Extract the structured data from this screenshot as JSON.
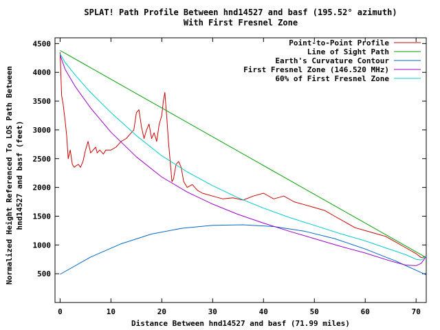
{
  "chart_data": {
    "type": "line",
    "title": "SPLAT! Path Profile Between hnd14527 and basf (195.52° azimuth)",
    "subtitle": "With First Fresnel Zone",
    "xlabel": "Distance Between hnd14527 and basf (71.99 miles)",
    "ylabel_line1": "Normalized Height Referenced To LOS Path Between",
    "ylabel_line2": "hnd14527 and basf (feet)",
    "xlim": [
      -1,
      72
    ],
    "ylim": [
      0,
      4600
    ],
    "x_ticks": [
      0,
      10,
      20,
      30,
      40,
      50,
      60,
      70
    ],
    "y_ticks": [
      500,
      1000,
      1500,
      2000,
      2500,
      3000,
      3500,
      4000,
      4500
    ],
    "grid": false,
    "legend_position": "top-right",
    "series": [
      {
        "name": "Point-to-Point Profile",
        "color": "#cc0000",
        "x": [
          0,
          0.3,
          0.6,
          1.0,
          1.3,
          1.6,
          2.0,
          2.4,
          2.8,
          3.2,
          3.6,
          4.0,
          4.5,
          5.0,
          5.5,
          6.0,
          6.5,
          7.0,
          7.3,
          7.8,
          8.5,
          9.0,
          10,
          11,
          12,
          13,
          14,
          14.5,
          15.0,
          15.5,
          16.0,
          16.5,
          17.0,
          17.5,
          18.0,
          18.5,
          19.0,
          19.5,
          20.0,
          20.3,
          20.6,
          21.0,
          21.3,
          21.6,
          22.0,
          22.3,
          22.8,
          23.3,
          23.8,
          24.3,
          25,
          26,
          27,
          28,
          30,
          32,
          34,
          36,
          38,
          40,
          42,
          44,
          46,
          48,
          50,
          52,
          54,
          56,
          58,
          60,
          62,
          64,
          66,
          68,
          70,
          71,
          72
        ],
        "values": [
          4350,
          3600,
          3450,
          3150,
          2900,
          2500,
          2650,
          2400,
          2350,
          2380,
          2400,
          2350,
          2450,
          2650,
          2800,
          2600,
          2650,
          2700,
          2600,
          2650,
          2580,
          2650,
          2650,
          2700,
          2800,
          2850,
          2950,
          3000,
          3300,
          3350,
          3050,
          2850,
          3000,
          3100,
          2850,
          2950,
          2800,
          3100,
          3250,
          3500,
          3650,
          3200,
          2800,
          2500,
          2100,
          2150,
          2400,
          2450,
          2350,
          2100,
          2000,
          2050,
          1950,
          1900,
          1850,
          1800,
          1820,
          1780,
          1850,
          1900,
          1800,
          1850,
          1750,
          1700,
          1650,
          1600,
          1500,
          1400,
          1300,
          1250,
          1200,
          1150,
          1050,
          950,
          850,
          780,
          800
        ]
      },
      {
        "name": "Line of Sight Path",
        "color": "#00a000",
        "x": [
          0,
          72
        ],
        "values": [
          4380,
          780
        ]
      },
      {
        "name": "Earth's Curvature Contour",
        "color": "#0066cc",
        "x": [
          0,
          6,
          12,
          18,
          24,
          30,
          36,
          42,
          48,
          54,
          60,
          66,
          72
        ],
        "values": [
          490,
          790,
          1020,
          1190,
          1290,
          1340,
          1350,
          1320,
          1240,
          1110,
          930,
          720,
          480
        ]
      },
      {
        "name": "First Fresnel Zone (146.520 MHz)",
        "color": "#9900cc",
        "x": [
          0,
          1,
          3,
          6,
          10,
          15,
          20,
          25,
          30,
          35,
          40,
          45,
          50,
          55,
          60,
          65,
          68,
          70,
          71,
          72
        ],
        "values": [
          4300,
          4050,
          3750,
          3380,
          2960,
          2530,
          2180,
          1920,
          1710,
          1530,
          1380,
          1240,
          1110,
          980,
          860,
          720,
          650,
          640,
          680,
          800
        ]
      },
      {
        "name": "60% of First Fresnel Zone",
        "color": "#00cccc",
        "x": [
          0,
          1,
          3,
          6,
          10,
          15,
          20,
          25,
          30,
          35,
          40,
          45,
          50,
          55,
          60,
          65,
          68,
          70,
          71,
          72
        ],
        "values": [
          4320,
          4170,
          3950,
          3650,
          3300,
          2900,
          2550,
          2270,
          2030,
          1820,
          1640,
          1480,
          1340,
          1200,
          1070,
          920,
          830,
          750,
          740,
          800
        ]
      }
    ]
  }
}
